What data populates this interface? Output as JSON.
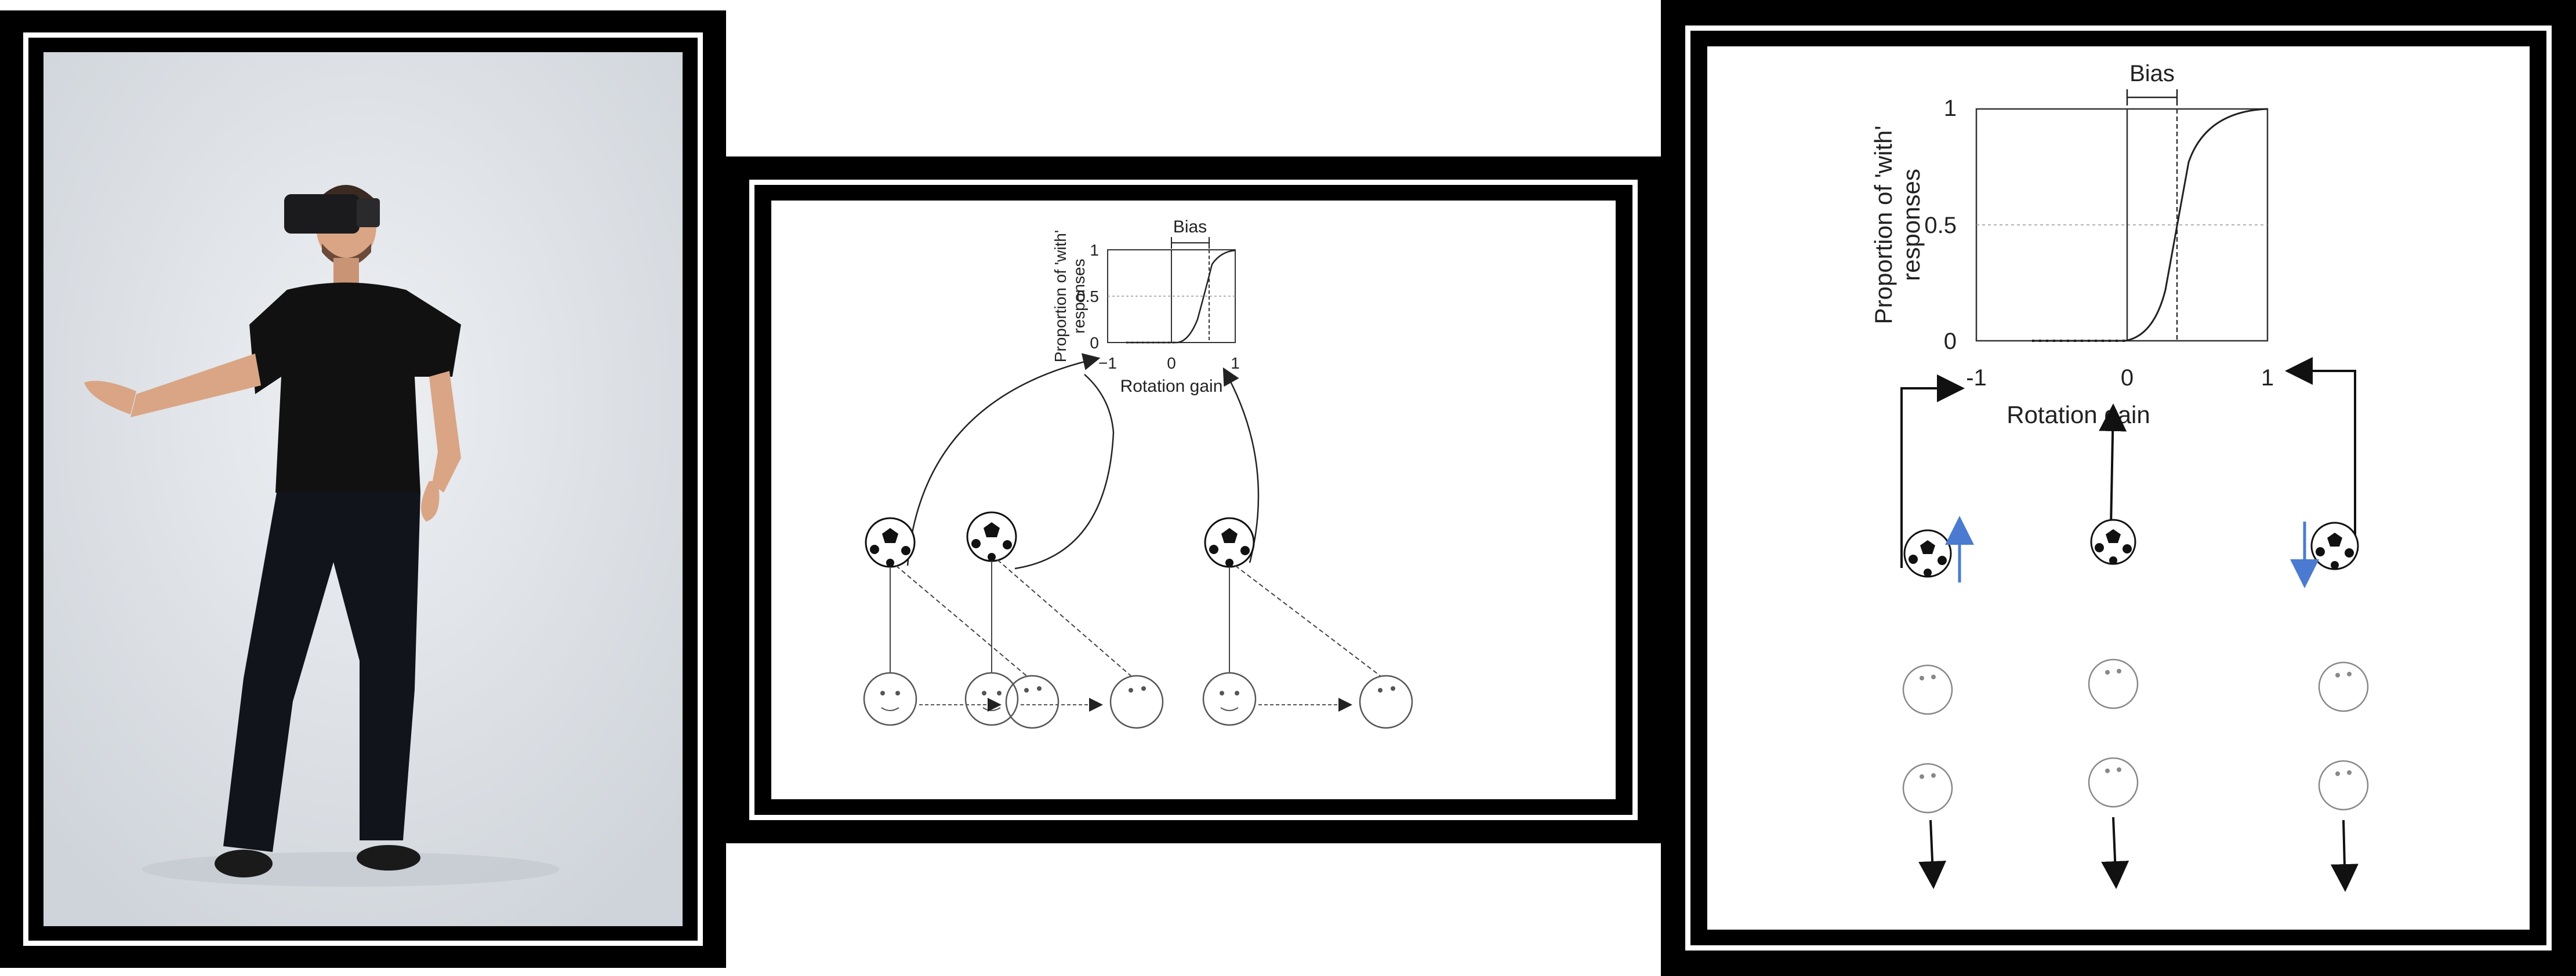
{
  "photo_panel": {
    "subject": "person wearing VR headset"
  },
  "middle_panel": {
    "plot": {
      "y_label_line1": "Proportion of 'with'",
      "y_label_line2": "responses",
      "y_ticks": [
        "1",
        "0.5",
        "0"
      ],
      "x_ticks": [
        "−1",
        "0",
        "1"
      ],
      "x_label": "Rotation gain",
      "bias_label": "Bias"
    }
  },
  "right_panel": {
    "plot": {
      "y_label_line1": "Proportion of 'with'",
      "y_label_line2": "responses",
      "y_ticks": [
        "1",
        "0.5",
        "0"
      ],
      "x_ticks": [
        "-1",
        "0",
        "1"
      ],
      "x_label": "Rotation gain",
      "bias_label": "Bias"
    }
  },
  "colors": {
    "frame": "#000000",
    "arrow_blue": "#4a7bd0",
    "photo_bg": "#dfe3e8",
    "shirt": "#111111",
    "skin": "#d9a585"
  }
}
